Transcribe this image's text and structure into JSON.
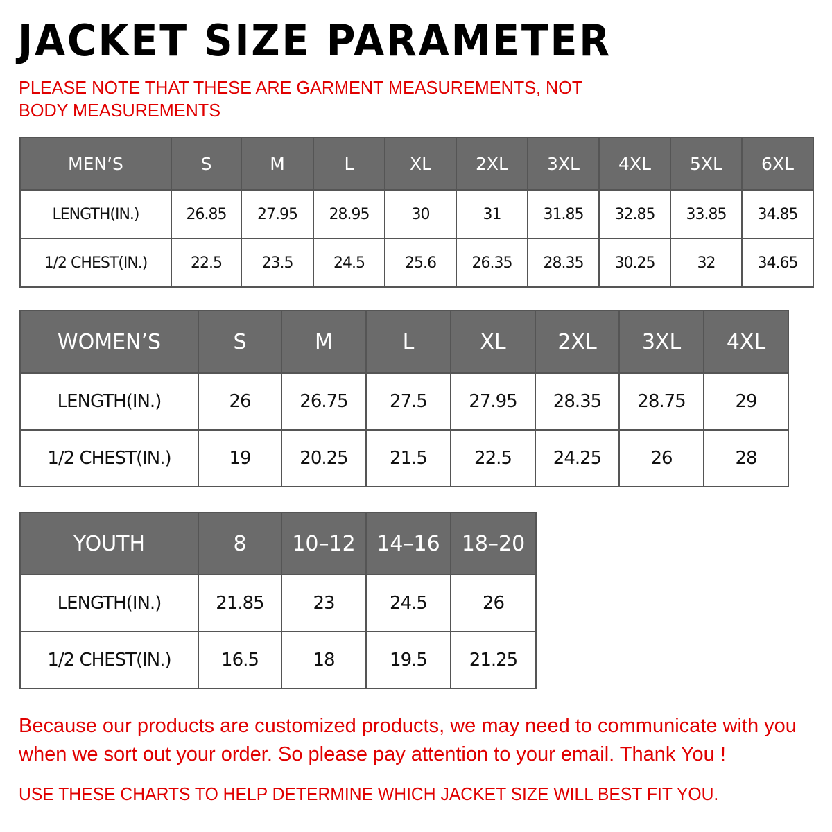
{
  "title": "JACKET  SIZE  PARAMETER",
  "note": "PLEASE NOTE THAT THESE ARE GARMENT MEASUREMENTS, NOT BODY MEASUREMENTS",
  "colors": {
    "header_bg": "#6b6b6b",
    "accent_red": "#e00000"
  },
  "tables": {
    "men": {
      "header": [
        "MEN’S",
        "S",
        "M",
        "L",
        "XL",
        "2XL",
        "3XL",
        "4XL",
        "5XL",
        "6XL"
      ],
      "rows": [
        [
          "LENGTH(IN.)",
          "26.85",
          "27.95",
          "28.95",
          "30",
          "31",
          "31.85",
          "32.85",
          "33.85",
          "34.85"
        ],
        [
          "1/2 CHEST(IN.)",
          "22.5",
          "23.5",
          "24.5",
          "25.6",
          "26.35",
          "28.35",
          "30.25",
          "32",
          "34.65"
        ]
      ]
    },
    "women": {
      "header": [
        "WOMEN’S",
        "S",
        "M",
        "L",
        "XL",
        "2XL",
        "3XL",
        "4XL"
      ],
      "rows": [
        [
          "LENGTH(IN.)",
          "26",
          "26.75",
          "27.5",
          "27.95",
          "28.35",
          "28.75",
          "29"
        ],
        [
          "1/2 CHEST(IN.)",
          "19",
          "20.25",
          "21.5",
          "22.5",
          "24.25",
          "26",
          "28"
        ]
      ]
    },
    "youth": {
      "header": [
        "YOUTH",
        "8",
        "10–12",
        "14–16",
        "18–20"
      ],
      "rows": [
        [
          "LENGTH(IN.)",
          "21.85",
          "23",
          "24.5",
          "26"
        ],
        [
          "1/2 CHEST(IN.)",
          "16.5",
          "18",
          "19.5",
          "21.25"
        ]
      ]
    }
  },
  "footer": "Because our products are customized products, we may need to communicate with you when we sort out your order. So please pay attention to your email. Thank You !",
  "usage": "USE THESE CHARTS TO HELP DETERMINE WHICH JACKET SIZE WILL BEST FIT YOU."
}
